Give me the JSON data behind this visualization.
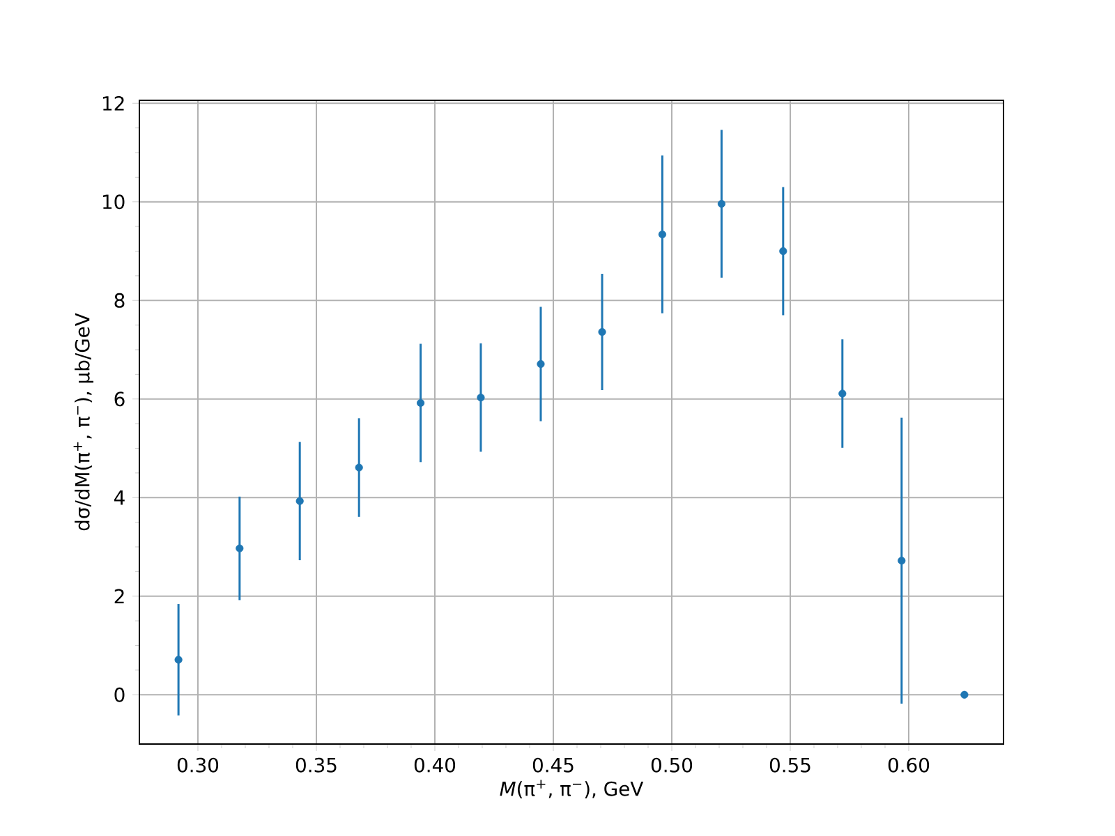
{
  "chart_data": {
    "type": "scatter",
    "xlabel": "*M*(π$^{+}$, π$^{−}$), GeV",
    "ylabel": "dσ/dM(π$^{+}$, π$^{−}$), μb/GeV",
    "x": [
      0.2918,
      0.3176,
      0.343,
      0.368,
      0.394,
      0.4194,
      0.4447,
      0.4706,
      0.496,
      0.521,
      0.547,
      0.572,
      0.597,
      0.6235
    ],
    "series": [
      {
        "color": "#1f77b4",
        "values": [
          0.71,
          2.97,
          3.93,
          4.61,
          5.92,
          6.03,
          6.71,
          7.36,
          9.34,
          9.96,
          9.0,
          6.11,
          2.72,
          0
        ],
        "errors": [
          1.13,
          1.05,
          1.2,
          1.0,
          1.2,
          1.1,
          1.16,
          1.18,
          1.6,
          1.5,
          1.3,
          1.1,
          2.9,
          0
        ]
      }
    ],
    "xlim": [
      0.2753,
      0.64
    ],
    "ylim": [
      -1.0,
      12.06
    ],
    "xticks": [
      {
        "value": 0.3,
        "label": "0.30"
      },
      0.35,
      {
        "value": 0.4,
        "label": "0.40"
      },
      0.45,
      {
        "value": 0.5,
        "label": "0.50"
      },
      0.55,
      {
        "value": 0.6,
        "label": "0.60"
      }
    ],
    "yticks": [
      0,
      2,
      4,
      6,
      8,
      10,
      12
    ],
    "grid": true,
    "marker": "circle"
  }
}
